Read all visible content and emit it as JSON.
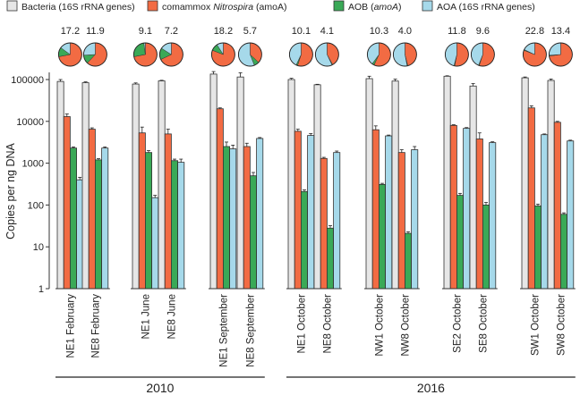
{
  "chart_data": {
    "type": "bar",
    "scale": "log",
    "ylabel": "Copies per ng DNA",
    "ylim": [
      1,
      100000
    ],
    "ytick_values": [
      1,
      10,
      100,
      1000,
      10000,
      100000
    ],
    "ytick_labels": [
      "1",
      "10",
      "100",
      "1000",
      "10000",
      "100000"
    ],
    "legend": [
      {
        "key": "bacteria",
        "prefix": "Bacteria (16S rRNA genes)",
        "italic": "",
        "suffix": "",
        "color": "#e6e6e6"
      },
      {
        "key": "comammox",
        "prefix": "comammox ",
        "italic": "Nitrospira",
        "suffix": " (amoA)",
        "color": "#f26b43"
      },
      {
        "key": "aob",
        "prefix": "AOB (",
        "italic": "amoA",
        "suffix": ")",
        "color": "#3aa957"
      },
      {
        "key": "aoa",
        "prefix": "AOA (16S rRNA genes)",
        "italic": "",
        "suffix": "",
        "color": "#a6d9ea"
      }
    ],
    "series_keys": [
      "bacteria",
      "comammox",
      "aob",
      "aoa"
    ],
    "colors": {
      "bacteria": "#e6e6e6",
      "comammox": "#f26b43",
      "aob": "#3aa957",
      "aoa": "#a6d9ea"
    },
    "samples": [
      {
        "label": "NE1 February",
        "ratio": "17.2",
        "values": [
          90000,
          13000,
          2300,
          400
        ],
        "errors": [
          10000,
          2000,
          150,
          60
        ],
        "pie": [
          0.72,
          0.13,
          0.15
        ]
      },
      {
        "label": "NE8 February",
        "ratio": "11.9",
        "values": [
          84000,
          6500,
          1200,
          2300
        ],
        "errors": [
          4000,
          500,
          80,
          150
        ],
        "pie": [
          0.62,
          0.12,
          0.26
        ]
      },
      {
        "label": "NE1 June",
        "ratio": "9.1",
        "values": [
          78000,
          5300,
          1800,
          150
        ],
        "errors": [
          5000,
          2000,
          200,
          20
        ],
        "pie": [
          0.72,
          0.26,
          0.02
        ]
      },
      {
        "label": "NE8 June",
        "ratio": "7.2",
        "values": [
          93000,
          5000,
          1150,
          1050
        ],
        "errors": [
          3000,
          1500,
          100,
          200
        ],
        "pie": [
          0.68,
          0.16,
          0.16
        ]
      },
      {
        "label": "NE1 September",
        "ratio": "18.2",
        "values": [
          135000,
          20000,
          2500,
          2200
        ],
        "errors": [
          20000,
          1000,
          700,
          500
        ],
        "pie": [
          0.81,
          0.1,
          0.09
        ]
      },
      {
        "label": "NE8 September",
        "ratio": "5.7",
        "values": [
          115000,
          2500,
          500,
          3900
        ],
        "errors": [
          30000,
          500,
          100,
          200
        ],
        "pie": [
          0.37,
          0.07,
          0.56
        ]
      },
      {
        "label": "NE1 October",
        "ratio": "10.1",
        "values": [
          100000,
          5800,
          210,
          4600
        ],
        "errors": [
          7000,
          700,
          20,
          500
        ],
        "pie": [
          0.55,
          0.02,
          0.43
        ]
      },
      {
        "label": "NE8 October",
        "ratio": "4.1",
        "values": [
          75000,
          1300,
          28,
          1800
        ],
        "errors": [
          2000,
          80,
          4,
          150
        ],
        "pie": [
          0.42,
          0.01,
          0.57
        ]
      },
      {
        "label": "NW1 October",
        "ratio": "10.3",
        "values": [
          105000,
          6300,
          310,
          4500
        ],
        "errors": [
          15000,
          1500,
          20,
          200
        ],
        "pie": [
          0.57,
          0.03,
          0.4
        ]
      },
      {
        "label": "NW8 October",
        "ratio": "4.0",
        "values": [
          92000,
          1800,
          21,
          2100
        ],
        "errors": [
          10000,
          300,
          2,
          400
        ],
        "pie": [
          0.46,
          0.01,
          0.53
        ]
      },
      {
        "label": "SE2 October",
        "ratio": "11.8",
        "values": [
          120000,
          8000,
          170,
          6800
        ],
        "errors": [
          3000,
          300,
          20,
          300
        ],
        "pie": [
          0.53,
          0.01,
          0.46
        ]
      },
      {
        "label": "SE8 October",
        "ratio": "9.6",
        "values": [
          70000,
          3800,
          100,
          3100
        ],
        "errors": [
          10000,
          1500,
          15,
          150
        ],
        "pie": [
          0.55,
          0.01,
          0.44
        ]
      },
      {
        "label": "SW1 October",
        "ratio": "22.8",
        "values": [
          110000,
          21000,
          95,
          4800
        ],
        "errors": [
          5000,
          2500,
          10,
          200
        ],
        "pie": [
          0.81,
          0.01,
          0.18
        ]
      },
      {
        "label": "SW8 October",
        "ratio": "13.4",
        "values": [
          95000,
          9500,
          60,
          3400
        ],
        "errors": [
          8000,
          500,
          5,
          150
        ],
        "pie": [
          0.73,
          0.01,
          0.26
        ]
      }
    ],
    "groups": [
      {
        "label": "2010",
        "first": 0,
        "last": 5
      },
      {
        "label": "2016",
        "first": 6,
        "last": 13
      }
    ]
  }
}
